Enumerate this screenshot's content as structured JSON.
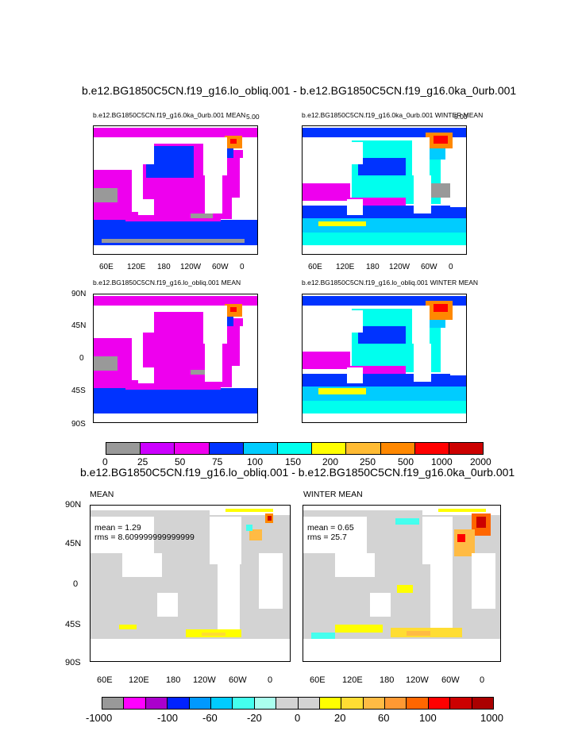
{
  "figure": {
    "top_title": "b.e12.BG1850C5CN.f19_g16.lo_obliq.001 - b.e12.BG1850C5CN.f19_g16.0ka_0urb.001",
    "diff_title": "b.e12.BG1850C5CN.f19_g16.lo_obliq.001 - b.e12.BG1850C5CN.f19_g16.0ka_0urb.001"
  },
  "panels": {
    "p1": {
      "title": "b.e12.BG1850C5CN.f19_g16.0ka_0urb.001 MEAN",
      "corner": "5.00"
    },
    "p2": {
      "title": "b.e12.BG1850C5CN.f19_g16.0ka_0urb.001 WINTER MEAN",
      "corner": "5.00"
    },
    "p3": {
      "title": "b.e12.BG1850C5CN.f19_g16.lo_obliq.001 MEAN"
    },
    "p4": {
      "title": "b.e12.BG1850C5CN.f19_g16.lo_obliq.001 WINTER MEAN"
    },
    "p5": {
      "title": "MEAN",
      "mean": "mean = 1.29",
      "rms": "rms = 8.609999999999999"
    },
    "p6": {
      "title": "WINTER MEAN",
      "mean": "mean = 0.65",
      "rms": "rms = 25.7"
    }
  },
  "axes": {
    "lon_ticks": [
      "60E",
      "120E",
      "180",
      "120W",
      "60W",
      "0"
    ],
    "lat_ticks": [
      "90N",
      "45N",
      "0",
      "45S",
      "90S"
    ]
  },
  "colorbar_top": {
    "labels": [
      "0",
      "25",
      "50",
      "75",
      "100",
      "150",
      "200",
      "250",
      "500",
      "1000",
      "2000"
    ],
    "colors": [
      "#999999",
      "#cc00ff",
      "#ee00ee",
      "#0033ff",
      "#00ccff",
      "#00ffee",
      "#ffff00",
      "#ffbb33",
      "#ff8800",
      "#ff0000",
      "#cc0000"
    ]
  },
  "colorbar_bottom": {
    "labels": [
      "-1000",
      "-100",
      "-60",
      "-20",
      "0",
      "20",
      "60",
      "100",
      "1000"
    ],
    "colors": [
      "#999999",
      "#ff00ff",
      "#aa00cc",
      "#0022ff",
      "#0099ff",
      "#00ccff",
      "#44ffee",
      "#aaffee",
      "#d3d3d3",
      "#d3d3d3",
      "#ffff00",
      "#ffdd33",
      "#ffbb44",
      "#ff9933",
      "#ff6600",
      "#ff0000",
      "#cc0000",
      "#aa0000"
    ]
  }
}
